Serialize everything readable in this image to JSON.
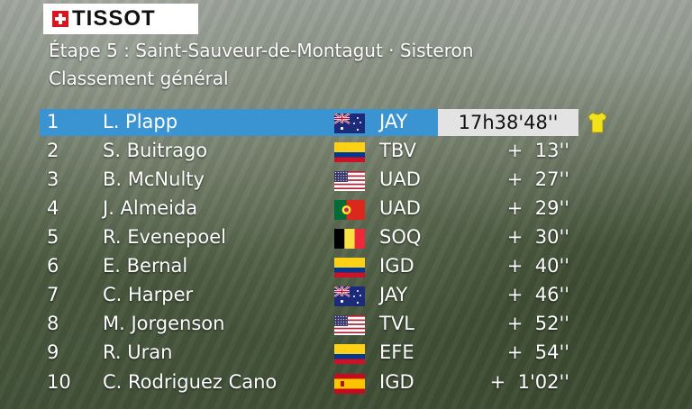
{
  "logo": {
    "text": "TISSOT",
    "mark": "swiss-cross-icon"
  },
  "header": {
    "title": "Étape 5 : Saint-Sauveur-de-Montagut · Sisteron",
    "subtitle": "Classement général"
  },
  "colors": {
    "leader_bar": "#3a94d2",
    "leader_time_bg": "#e3e3e3",
    "yellow_jersey": "#f2e21b",
    "logo_red": "#d8141d"
  },
  "standings": [
    {
      "pos": "1",
      "name": "L. Plapp",
      "flag": "australia-flag-icon",
      "team": "JAY",
      "time": "17h38'48''"
    },
    {
      "pos": "2",
      "name": "S. Buitrago",
      "flag": "colombia-flag-icon",
      "team": "TBV",
      "time": "+  13''"
    },
    {
      "pos": "3",
      "name": "B. McNulty",
      "flag": "usa-flag-icon",
      "team": "UAD",
      "time": "+  27''"
    },
    {
      "pos": "4",
      "name": "J. Almeida",
      "flag": "portugal-flag-icon",
      "team": "UAD",
      "time": "+  29''"
    },
    {
      "pos": "5",
      "name": "R. Evenepoel",
      "flag": "belgium-flag-icon",
      "team": "SOQ",
      "time": "+  30''"
    },
    {
      "pos": "6",
      "name": "E. Bernal",
      "flag": "colombia-flag-icon",
      "team": "IGD",
      "time": "+  40''"
    },
    {
      "pos": "7",
      "name": "C. Harper",
      "flag": "australia-flag-icon",
      "team": "JAY",
      "time": "+  46''"
    },
    {
      "pos": "8",
      "name": "M. Jorgenson",
      "flag": "usa-flag-icon",
      "team": "TVL",
      "time": "+  52''"
    },
    {
      "pos": "9",
      "name": "R. Uran",
      "flag": "colombia-flag-icon",
      "team": "EFE",
      "time": "+  54''"
    },
    {
      "pos": "10",
      "name": "C. Rodriguez Cano",
      "flag": "spain-flag-icon",
      "team": "IGD",
      "time": "+  1'02''"
    }
  ],
  "leader_icon": "yellow-jersey-icon"
}
